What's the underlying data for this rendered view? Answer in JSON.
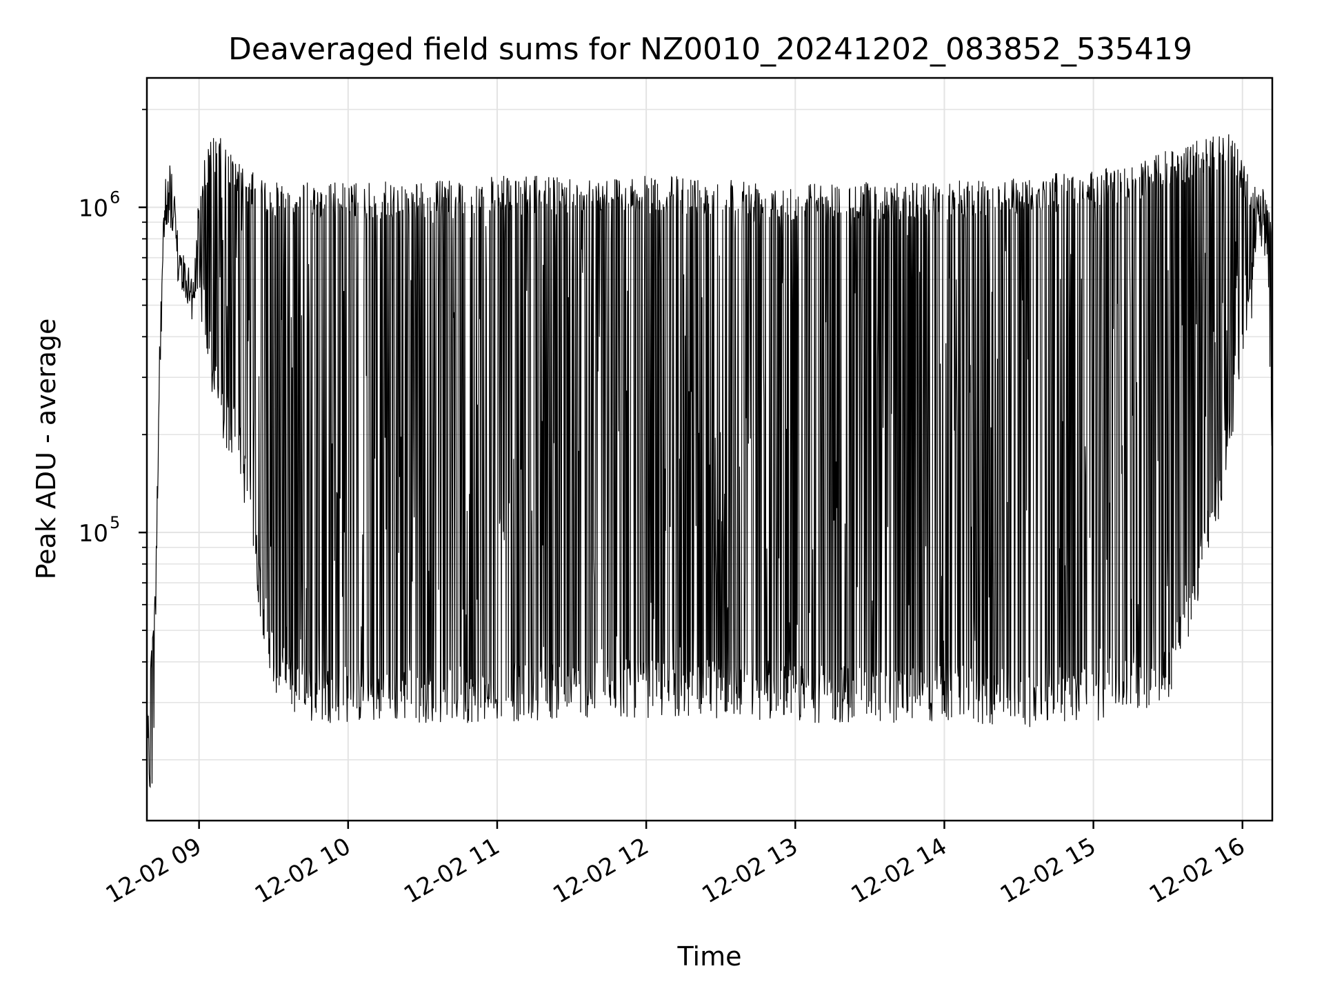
{
  "chart_data": {
    "type": "line",
    "title": "Deaveraged field sums for NZ0010_20241202_083852_535419",
    "xlabel": "Time",
    "ylabel": "Peak ADU - average",
    "xlim": [
      "12-02 08:39",
      "12-02 16:12"
    ],
    "ylim": [
      13000,
      2500000
    ],
    "yscale": "log",
    "grid": true,
    "x_ticks": [
      "12-02 09",
      "12-02 10",
      "12-02 11",
      "12-02 12",
      "12-02 13",
      "12-02 14",
      "12-02 15",
      "12-02 16"
    ],
    "y_ticks": [
      {
        "base": "10",
        "exp": "5",
        "value": 100000
      },
      {
        "base": "10",
        "exp": "6",
        "value": 1000000
      }
    ],
    "line_color": "#000000",
    "series": [
      {
        "x": [
          "08:39",
          "08:40",
          "08:41",
          "08:42",
          "08:44",
          "08:46",
          "08:48",
          "08:49",
          "08:50",
          "08:51",
          "08:52",
          "08:54",
          "08:56",
          "08:58",
          "09:00",
          "09:03",
          "09:06",
          "09:10",
          "09:15",
          "09:20",
          "09:25",
          "09:30",
          "09:35",
          "09:40",
          "09:45",
          "09:50",
          "10:00",
          "10:30",
          "11:00",
          "11:30",
          "12:00",
          "12:30",
          "13:00",
          "13:30",
          "14:00",
          "14:30",
          "15:00",
          "15:10",
          "15:20",
          "15:30",
          "15:40",
          "15:50",
          "15:55",
          "16:00",
          "16:05",
          "16:08",
          "16:10",
          "16:12"
        ],
        "low": [
          22000,
          18000,
          16000,
          30000,
          300000,
          900000,
          1100000,
          1050000,
          850000,
          700000,
          600000,
          540000,
          500000,
          530000,
          560000,
          400000,
          270000,
          210000,
          190000,
          120000,
          60000,
          38000,
          33000,
          31000,
          30000,
          30000,
          30000,
          30000,
          30000,
          31000,
          31000,
          31000,
          30000,
          30000,
          30000,
          29000,
          30000,
          32000,
          33000,
          35000,
          60000,
          120000,
          200000,
          350000,
          600000,
          700000,
          650000,
          180000
        ],
        "high": [
          25000,
          45000,
          50000,
          60000,
          400000,
          950000,
          1150000,
          1100000,
          1000000,
          900000,
          800000,
          700000,
          650000,
          600000,
          1300000,
          1500000,
          1700000,
          1600000,
          1400000,
          1300000,
          1250000,
          1200000,
          1200000,
          1200000,
          1200000,
          1200000,
          1200000,
          1200000,
          1250000,
          1250000,
          1250000,
          1250000,
          1200000,
          1200000,
          1200000,
          1250000,
          1300000,
          1350000,
          1400000,
          1500000,
          1600000,
          1700000,
          1700000,
          1400000,
          1200000,
          1150000,
          1100000,
          800000
        ]
      }
    ]
  }
}
